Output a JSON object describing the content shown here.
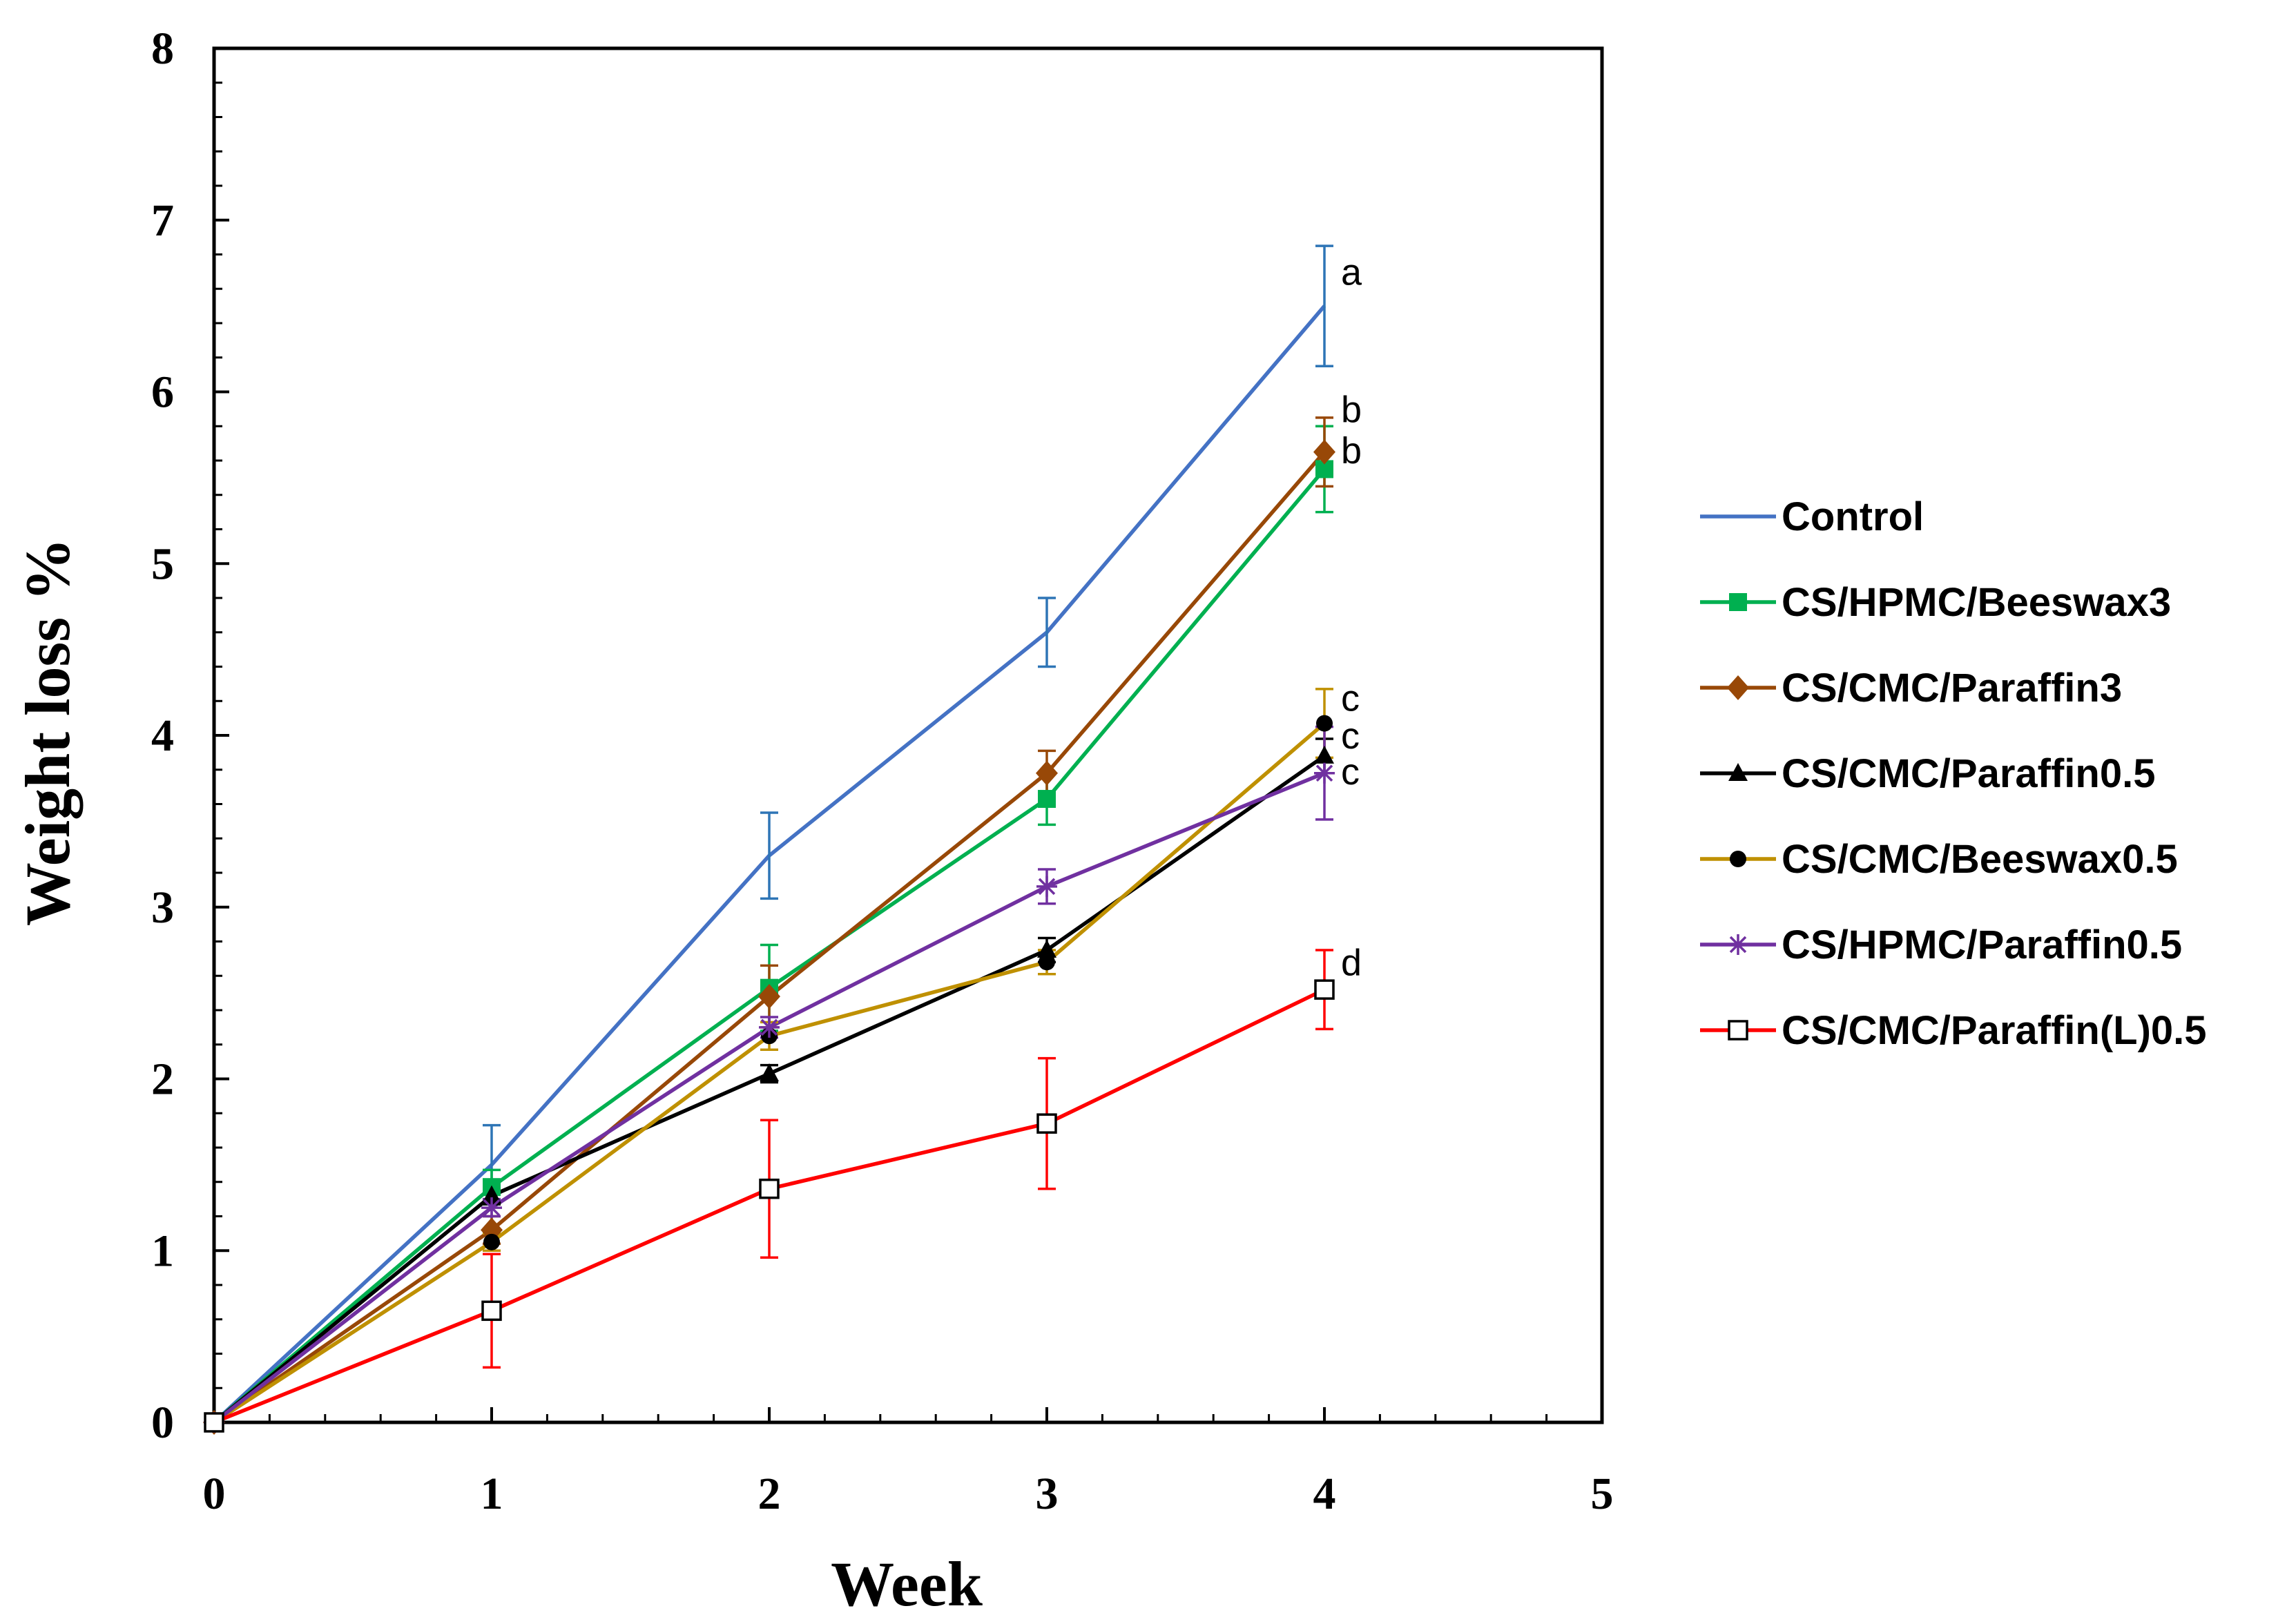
{
  "chart_data": {
    "type": "line",
    "title": "",
    "xlabel": "Week",
    "ylabel": "Weight loss %",
    "xlim": [
      0,
      5
    ],
    "ylim": [
      0,
      8
    ],
    "xticks": [
      "0",
      "1",
      "2",
      "3",
      "4",
      "5"
    ],
    "yticks": [
      "0",
      "1",
      "2",
      "3",
      "4",
      "5",
      "6",
      "7",
      "8"
    ],
    "grid": false,
    "legend_position": "right",
    "x": [
      0,
      1,
      2,
      3,
      4
    ],
    "series": [
      {
        "name": "Control",
        "color": "#4472C4",
        "marker": "none",
        "values": [
          0,
          1.5,
          3.3,
          4.6,
          6.5
        ],
        "errors": [
          0,
          0.23,
          0.25,
          0.2,
          0.35
        ],
        "error_color": "#2E75B6"
      },
      {
        "name": "CS/HPMC/Beeswax3",
        "color": "#00B050",
        "marker": "square",
        "values": [
          0,
          1.37,
          2.53,
          3.63,
          5.55
        ],
        "errors": [
          0,
          0.1,
          0.25,
          0.15,
          0.25
        ],
        "error_color": "#00B050"
      },
      {
        "name": "CS/CMC/Paraffin3",
        "color": "#984807",
        "marker": "diamond",
        "values": [
          0,
          1.12,
          2.48,
          3.78,
          5.65
        ],
        "errors": [
          0,
          0.08,
          0.18,
          0.13,
          0.2
        ],
        "error_color": "#984807"
      },
      {
        "name": "CS/CMC/Paraffin0.5",
        "color": "#000000",
        "marker": "triangle",
        "values": [
          0,
          1.32,
          2.03,
          2.75,
          3.88
        ],
        "errors": [
          0,
          0.05,
          0.05,
          0.07,
          0.1
        ],
        "error_color": "#000000"
      },
      {
        "name": "CS/CMC/Beeswax0.5",
        "color": "#BF9000",
        "marker": "circle",
        "values": [
          0,
          1.05,
          2.25,
          2.68,
          4.07
        ],
        "errors": [
          0,
          0.05,
          0.08,
          0.07,
          0.2
        ],
        "error_color": "#BF9000"
      },
      {
        "name": "CS/HPMC/Paraffin0.5",
        "color": "#7030A0",
        "marker": "star",
        "values": [
          0,
          1.25,
          2.3,
          3.12,
          3.78
        ],
        "errors": [
          0,
          0.05,
          0.06,
          0.1,
          0.27
        ],
        "error_color": "#7030A0"
      },
      {
        "name": "CS/CMC/Paraffin(L)0.5",
        "color": "#FF0000",
        "marker": "open-square",
        "values": [
          0,
          0.65,
          1.36,
          1.74,
          2.52
        ],
        "errors": [
          0,
          0.33,
          0.4,
          0.38,
          0.23
        ],
        "error_color": "#FF0000"
      }
    ],
    "annotations": [
      {
        "text": "a",
        "x": 4,
        "y": 6.68
      },
      {
        "text": "b",
        "x": 4,
        "y": 5.88
      },
      {
        "text": "b",
        "x": 4,
        "y": 5.64
      },
      {
        "text": "c",
        "x": 4,
        "y": 4.2
      },
      {
        "text": "c",
        "x": 4,
        "y": 3.98
      },
      {
        "text": "c",
        "x": 4,
        "y": 3.77
      },
      {
        "text": "d",
        "x": 4,
        "y": 2.66
      }
    ]
  }
}
